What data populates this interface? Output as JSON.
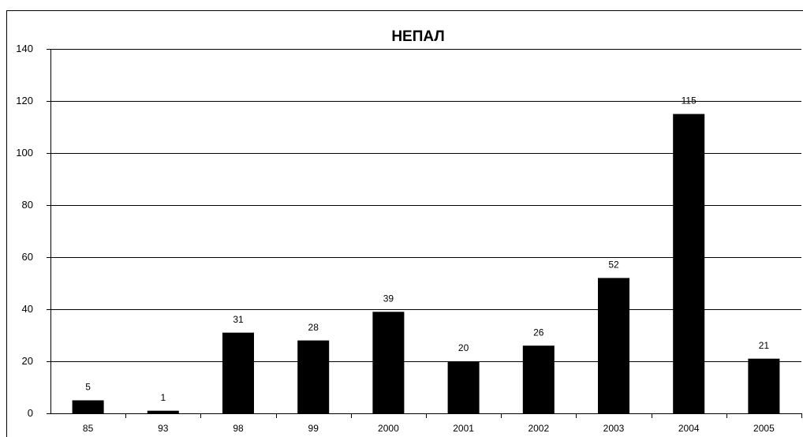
{
  "chart_data": {
    "type": "bar",
    "title": "НЕПАЛ",
    "categories": [
      "85",
      "93",
      "98",
      "99",
      "2000",
      "2001",
      "2002",
      "2003",
      "2004",
      "2005"
    ],
    "values": [
      5,
      1,
      31,
      28,
      39,
      20,
      26,
      52,
      115,
      21
    ],
    "color": "#000000",
    "ylim": [
      0,
      140
    ],
    "yticks": [
      0,
      20,
      40,
      60,
      80,
      100,
      120,
      140
    ],
    "grid": true
  }
}
